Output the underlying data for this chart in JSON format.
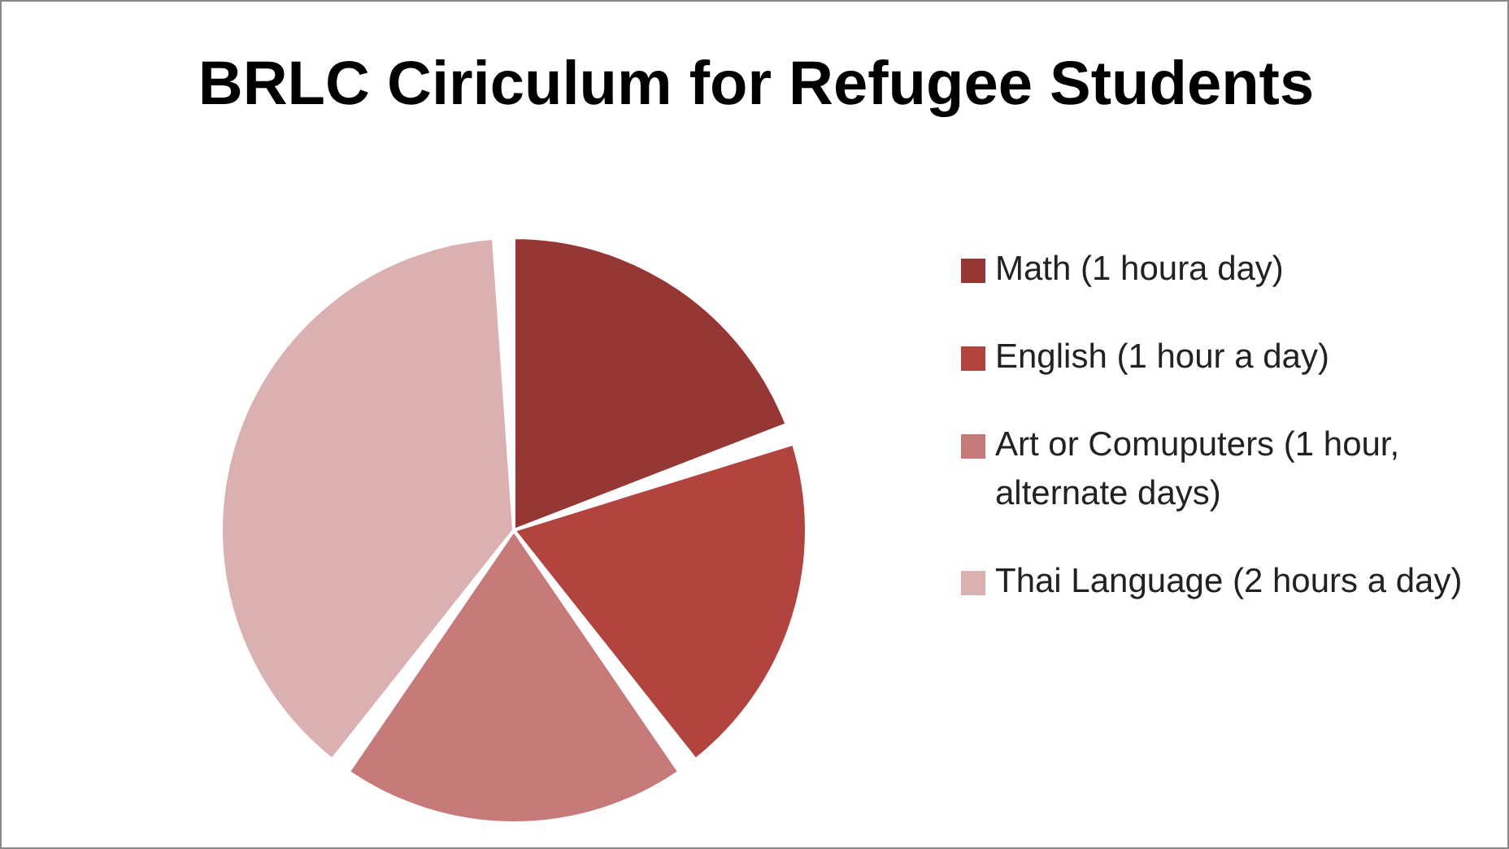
{
  "chart_data": {
    "type": "pie",
    "title": "BRLC Ciriculum for Refugee Students",
    "categories": [
      "Math (1 houra day)",
      "English (1 hour a day)",
      "Art or Comuputers (1 hour, alternate days)",
      "Thai Language (2 hours a day)"
    ],
    "values": [
      20,
      20,
      20,
      40
    ],
    "colors": [
      "#953735",
      "#b2443f",
      "#c77a7a",
      "#dbb0b0"
    ],
    "legend": "right"
  }
}
